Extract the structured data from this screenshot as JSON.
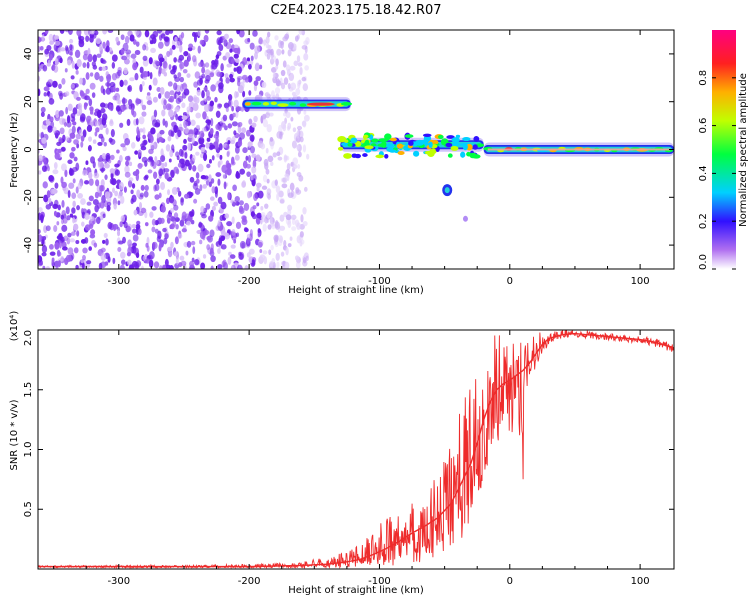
{
  "title": "C2E4.2023.175.18.42.R07",
  "colors": {
    "snr_line": "#ee2b2b",
    "frame": "#000000",
    "sparse_scatter": "#7b2fe8",
    "track_core": "#e8323a",
    "track_mid": "#22d0d8",
    "track_outer": "#2233ee"
  },
  "chart_data": [
    {
      "type": "heatmap",
      "title": "C2E4.2023.175.18.42.R07",
      "xlabel": "Height of straight line (km)",
      "ylabel": "Frequency (Hz)",
      "xlim": [
        -362,
        126
      ],
      "ylim": [
        -50,
        50
      ],
      "xticks": [
        -300,
        -200,
        -100,
        0,
        100
      ],
      "yticks": [
        -40,
        -20,
        0,
        20,
        40
      ],
      "colorbar": {
        "label": "Normalized spectral amplitude",
        "range": [
          0,
          1
        ],
        "ticks": [
          "0.0",
          "0.2",
          "0.4",
          "0.6",
          "0.8"
        ],
        "tick_values": [
          0,
          0.2,
          0.4,
          0.6,
          0.8
        ],
        "colormap": "rainbow (white → purple → blue → cyan → green → yellow → red → magenta)"
      },
      "features": [
        {
          "kind": "noise-region",
          "x_range": [
            -362,
            -190
          ],
          "y_range": [
            -50,
            50
          ],
          "amplitude": 0.1
        },
        {
          "kind": "faint-noise",
          "x_range": [
            -190,
            -155
          ],
          "y_range": [
            -50,
            50
          ],
          "amplitude": 0.03
        },
        {
          "kind": "track",
          "x_range": [
            -205,
            -122
          ],
          "y": 19,
          "amplitude": 0.85
        },
        {
          "kind": "track",
          "x_range": [
            -130,
            -20
          ],
          "y": 2,
          "amplitude": 0.6
        },
        {
          "kind": "track",
          "x_range": [
            -20,
            126
          ],
          "y": 0,
          "amplitude": 0.85
        },
        {
          "kind": "blob",
          "x": -48,
          "y": -17,
          "amplitude": 0.5
        },
        {
          "kind": "blob",
          "x": -34,
          "y": -29,
          "amplitude": 0.1
        }
      ]
    },
    {
      "type": "line",
      "xlabel": "Height of straight line (km)",
      "ylabel": "SNR (10 * v/v)",
      "y_multiplier": "(x10⁴)",
      "xlim": [
        -362,
        126
      ],
      "ylim": [
        0,
        2.0
      ],
      "xticks": [
        -300,
        -200,
        -100,
        0,
        100
      ],
      "yticks": [
        0.5,
        1.0,
        1.5,
        2.0
      ],
      "ytick_labels": [
        "0.5",
        "1.0",
        "1.5",
        "2.0"
      ],
      "series": [
        {
          "x": [
            -362,
            -300,
            -250,
            -200,
            -160,
            -140,
            -125,
            -115,
            -105,
            -95,
            -85,
            -75,
            -65,
            -55,
            -45,
            -38,
            -30,
            -25,
            -20,
            -15,
            -10,
            -5,
            0,
            5,
            10,
            15,
            20,
            25,
            30,
            40,
            50,
            60,
            70,
            80,
            90,
            100,
            110,
            120,
            126
          ],
          "y": [
            0.02,
            0.02,
            0.02,
            0.02,
            0.03,
            0.04,
            0.06,
            0.08,
            0.12,
            0.17,
            0.23,
            0.3,
            0.36,
            0.43,
            0.55,
            0.7,
            0.88,
            1.05,
            1.25,
            1.4,
            1.5,
            1.55,
            1.58,
            1.62,
            1.66,
            1.72,
            1.8,
            1.88,
            1.93,
            1.96,
            1.97,
            1.96,
            1.95,
            1.94,
            1.93,
            1.92,
            1.9,
            1.87,
            1.85
          ],
          "max": [
            0.03,
            0.03,
            0.03,
            0.04,
            0.06,
            0.1,
            0.15,
            0.22,
            0.3,
            0.45,
            0.55,
            0.62,
            0.72,
            0.8,
            1.05,
            1.35,
            1.6,
            1.88,
            2.0,
            2.0,
            2.0,
            1.98,
            1.95,
            1.95,
            1.92,
            1.95,
            1.97,
            2.0,
            2.0,
            2.0,
            2.0,
            1.99,
            1.98,
            1.97,
            1.96,
            1.95,
            1.93,
            1.9,
            1.88
          ],
          "min": [
            0.01,
            0.01,
            0.01,
            0.01,
            0.01,
            0.01,
            0.01,
            0.02,
            0.02,
            0.03,
            0.03,
            0.05,
            0.06,
            0.08,
            0.12,
            0.18,
            0.3,
            0.5,
            0.75,
            0.9,
            1.0,
            1.2,
            1.05,
            1.3,
            0.7,
            1.5,
            1.7,
            1.8,
            1.88,
            1.93,
            1.94,
            1.93,
            1.92,
            1.91,
            1.9,
            1.89,
            1.86,
            1.83,
            1.81
          ]
        }
      ]
    }
  ]
}
